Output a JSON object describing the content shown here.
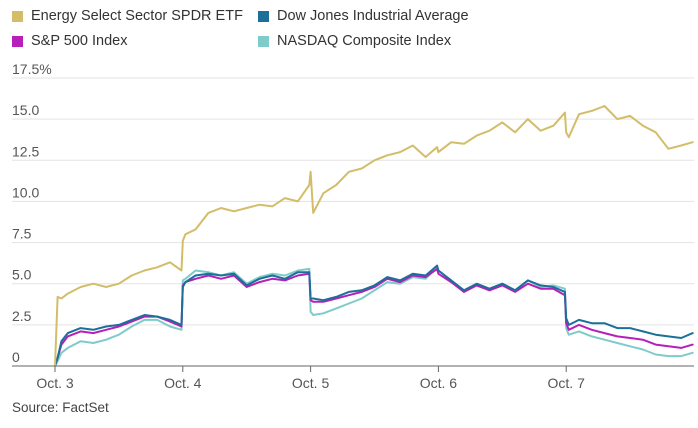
{
  "source": "Source: FactSet",
  "chart_data": {
    "type": "line",
    "title": "",
    "xlabel": "",
    "ylabel": "",
    "ylim": [
      0,
      17.5
    ],
    "y_ticks": [
      {
        "value": 0,
        "label": "0"
      },
      {
        "value": 2.5,
        "label": "2.5"
      },
      {
        "value": 5,
        "label": "5.0"
      },
      {
        "value": 7.5,
        "label": "7.5"
      },
      {
        "value": 10,
        "label": "10.0"
      },
      {
        "value": 12.5,
        "label": "12.5"
      },
      {
        "value": 15,
        "label": "15.0"
      },
      {
        "value": 17.5,
        "label": "17.5%"
      }
    ],
    "x_ticks": [
      {
        "value": 0,
        "label": "Oct. 3"
      },
      {
        "value": 1,
        "label": "Oct. 4"
      },
      {
        "value": 2,
        "label": "Oct. 5"
      },
      {
        "value": 3,
        "label": "Oct. 6"
      },
      {
        "value": 4,
        "label": "Oct. 7"
      }
    ],
    "grid": true,
    "legend_position": "top",
    "x": [
      0,
      0.02,
      0.05,
      0.1,
      0.2,
      0.3,
      0.4,
      0.5,
      0.6,
      0.7,
      0.8,
      0.9,
      0.99,
      1.0,
      1.02,
      1.1,
      1.2,
      1.3,
      1.4,
      1.5,
      1.6,
      1.7,
      1.8,
      1.9,
      1.99,
      2.0,
      2.02,
      2.1,
      2.2,
      2.3,
      2.4,
      2.5,
      2.6,
      2.7,
      2.8,
      2.9,
      2.99,
      3.0,
      3.1,
      3.2,
      3.3,
      3.4,
      3.5,
      3.6,
      3.7,
      3.8,
      3.9,
      3.99,
      4.0,
      4.02,
      4.1,
      4.2,
      4.3,
      4.4,
      4.5,
      4.6,
      4.7,
      4.8,
      4.9,
      4.99
    ],
    "series": [
      {
        "name": "Energy Select Sector SPDR ETF",
        "color": "#d3bd68",
        "values": [
          0,
          4.2,
          4.1,
          4.4,
          4.8,
          5.0,
          4.8,
          5.0,
          5.5,
          5.8,
          6.0,
          6.3,
          5.8,
          7.6,
          8.0,
          8.3,
          9.3,
          9.6,
          9.4,
          9.6,
          9.8,
          9.7,
          10.2,
          10.0,
          11.0,
          11.8,
          9.3,
          10.5,
          11.0,
          11.8,
          12.0,
          12.5,
          12.8,
          13.0,
          13.4,
          12.7,
          13.3,
          13.0,
          13.6,
          13.5,
          14.0,
          14.3,
          14.8,
          14.2,
          15.0,
          14.3,
          14.6,
          15.4,
          14.2,
          13.9,
          15.3,
          15.5,
          15.8,
          15.0,
          15.2,
          14.6,
          14.2,
          13.2,
          13.4,
          13.6
        ]
      },
      {
        "name": "Dow Jones Industrial Average",
        "color": "#1c6f99",
        "values": [
          0,
          0.5,
          1.5,
          2.0,
          2.3,
          2.2,
          2.4,
          2.5,
          2.8,
          3.1,
          3.0,
          2.8,
          2.5,
          4.8,
          5.1,
          5.5,
          5.6,
          5.5,
          5.6,
          4.9,
          5.3,
          5.5,
          5.3,
          5.7,
          5.7,
          4.1,
          4.1,
          4.0,
          4.2,
          4.5,
          4.6,
          4.9,
          5.4,
          5.2,
          5.6,
          5.5,
          6.1,
          5.8,
          5.2,
          4.6,
          5.0,
          4.7,
          5.0,
          4.6,
          5.2,
          4.9,
          4.8,
          4.5,
          2.9,
          2.5,
          2.8,
          2.6,
          2.6,
          2.3,
          2.3,
          2.1,
          1.9,
          1.8,
          1.7,
          2.0
        ]
      },
      {
        "name": "S&P 500 Index",
        "color": "#b61fba",
        "values": [
          0,
          0.5,
          1.3,
          1.8,
          2.1,
          2.0,
          2.2,
          2.4,
          2.7,
          3.0,
          3.0,
          2.7,
          2.4,
          4.9,
          5.1,
          5.3,
          5.5,
          5.3,
          5.5,
          4.8,
          5.1,
          5.3,
          5.2,
          5.5,
          5.6,
          4.0,
          3.9,
          3.9,
          4.1,
          4.3,
          4.5,
          4.8,
          5.3,
          5.1,
          5.5,
          5.4,
          5.9,
          5.6,
          5.1,
          4.5,
          4.9,
          4.6,
          4.9,
          4.5,
          5.0,
          4.7,
          4.7,
          4.3,
          2.6,
          2.2,
          2.5,
          2.2,
          2.0,
          1.8,
          1.7,
          1.6,
          1.3,
          1.2,
          1.1,
          1.3
        ]
      },
      {
        "name": "NASDAQ Composite Index",
        "color": "#7ecbc9",
        "values": [
          0,
          0.3,
          0.8,
          1.1,
          1.5,
          1.4,
          1.6,
          1.9,
          2.4,
          2.8,
          2.8,
          2.4,
          2.2,
          5.2,
          5.3,
          5.8,
          5.7,
          5.5,
          5.7,
          5.0,
          5.4,
          5.6,
          5.5,
          5.8,
          5.9,
          3.3,
          3.1,
          3.2,
          3.5,
          3.8,
          4.1,
          4.6,
          5.1,
          5.0,
          5.4,
          5.3,
          6.0,
          5.8,
          5.2,
          4.5,
          4.9,
          4.6,
          5.0,
          4.6,
          5.2,
          4.8,
          4.9,
          4.7,
          2.3,
          1.9,
          2.1,
          1.8,
          1.6,
          1.4,
          1.2,
          1.0,
          0.7,
          0.6,
          0.6,
          0.8
        ]
      }
    ]
  }
}
